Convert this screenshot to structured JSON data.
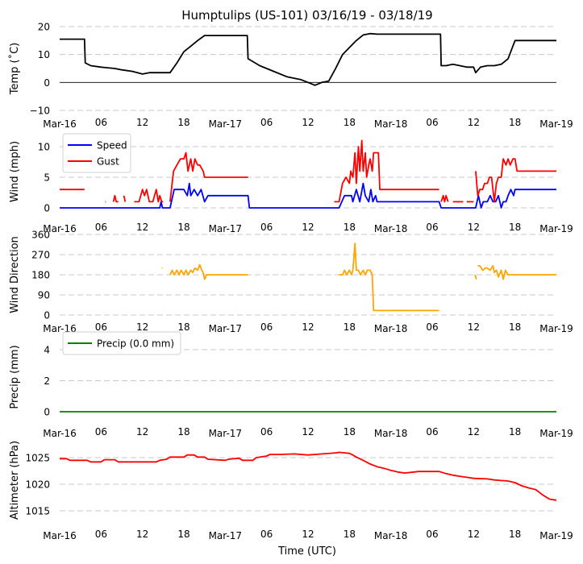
{
  "chart_data": {
    "type": "line",
    "title": "Humptulips (US-101) 03/16/19 - 03/18/19",
    "xlabel": "Time (UTC)",
    "x_unit": "hours since Mar-16 00:00 UTC",
    "xlim": [
      0,
      72
    ],
    "x_ticks": [
      {
        "hour": 0,
        "label": "Mar-16"
      },
      {
        "hour": 6,
        "label": "06"
      },
      {
        "hour": 12,
        "label": "12"
      },
      {
        "hour": 18,
        "label": "18"
      },
      {
        "hour": 24,
        "label": "Mar-17"
      },
      {
        "hour": 30,
        "label": "06"
      },
      {
        "hour": 36,
        "label": "12"
      },
      {
        "hour": 42,
        "label": "18"
      },
      {
        "hour": 48,
        "label": "Mar-18"
      },
      {
        "hour": 54,
        "label": "06"
      },
      {
        "hour": 60,
        "label": "12"
      },
      {
        "hour": 66,
        "label": "18"
      },
      {
        "hour": 72,
        "label": "Mar-19"
      }
    ],
    "panels": [
      {
        "id": "temp",
        "ylabel": "Temp ($^\\circ$C)",
        "ylabel_display": "Temp (˚C)",
        "ylim": [
          -10,
          20
        ],
        "yticks": [
          -10,
          0,
          10,
          20
        ],
        "ytick_labels": [
          "−10",
          "0",
          "10",
          "20"
        ],
        "grid": true,
        "zero_line": true,
        "legend": null,
        "series": [
          {
            "name": "Temp",
            "color": "#000000",
            "x": [
              0,
              3.6,
              3.7,
              4.5,
              6,
              8,
              9,
              10.5,
              12,
              13,
              14,
              15,
              16,
              17,
              18,
              19,
              20,
              21,
              22,
              27.2,
              27.3,
              29,
              31,
              33,
              35,
              36,
              37,
              38,
              39,
              40,
              41,
              42,
              43,
              44,
              45,
              46,
              55.2,
              55.3,
              56,
              57,
              58,
              59,
              60,
              60.3,
              61,
              62,
              63,
              64,
              65,
              66,
              72
            ],
            "y": [
              15.5,
              15.5,
              7,
              6,
              5.5,
              5,
              4.5,
              4,
              3,
              3.5,
              3.5,
              3.5,
              3.5,
              7,
              11,
              13,
              15,
              16.8,
              16.8,
              16.8,
              8.5,
              6,
              4,
              2,
              1,
              0,
              -1,
              0,
              0.5,
              5,
              10,
              12.5,
              15,
              17,
              17.5,
              17.3,
              17.3,
              6,
              6,
              6.5,
              6,
              5.5,
              5.5,
              3.5,
              5.5,
              6,
              6,
              6.5,
              8.5,
              15,
              15
            ]
          }
        ]
      },
      {
        "id": "wind",
        "ylabel": "Wind (mph)",
        "ylim": [
          -0.5,
          12
        ],
        "yticks": [
          0,
          5,
          10
        ],
        "ytick_labels": [
          "0",
          "5",
          "10"
        ],
        "grid": true,
        "legend": {
          "location": "upper-left",
          "entries": [
            "Speed",
            "Gust"
          ]
        },
        "series": [
          {
            "name": "Speed",
            "color": "#0000ff",
            "x": [
              0,
              14.5,
              14.7,
              14.9,
              16,
              16.6,
              17,
              18,
              18.5,
              18.8,
              19,
              19.5,
              20,
              20.5,
              21,
              21.5,
              27.3,
              27.5,
              40.5,
              40.9,
              41.3,
              42.3,
              42.5,
              43,
              43.5,
              44,
              44.3,
              44.8,
              45.1,
              45.4,
              45.8,
              46,
              55,
              55.3,
              60.3,
              60.7,
              61.1,
              61.4,
              62,
              62.4,
              62.8,
              63.2,
              63.6,
              64,
              64.3,
              64.7,
              65,
              65.4,
              65.8,
              66,
              72
            ],
            "y": [
              0,
              0,
              1,
              0,
              0,
              3,
              3,
              3,
              2,
              4,
              2,
              3,
              2,
              3,
              1,
              2,
              2,
              0,
              0,
              1,
              2,
              2,
              1,
              3,
              1,
              4,
              2,
              1,
              3,
              1,
              2,
              1,
              1,
              0,
              0,
              2,
              0,
              1,
              1,
              2,
              1,
              1,
              2,
              0,
              1,
              1,
              2,
              3,
              2,
              3,
              3
            ]
          },
          {
            "name": "Gust",
            "color": "#ff0000",
            "segments": [
              {
                "x": [
                  0,
                  3.6
                ],
                "y": [
                  3,
                  3
                ]
              },
              {
                "x": [
                  6.6,
                  6.7
                ],
                "y": [
                  1,
                  1
                ]
              },
              {
                "x": [
                  7.8,
                  8,
                  8.2,
                  8.5
                ],
                "y": [
                  1,
                  2,
                  1,
                  1
                ]
              },
              {
                "x": [
                  9.3,
                  9.5
                ],
                "y": [
                  2,
                  1
                ]
              },
              {
                "x": [
                  10.8,
                  11.5,
                  12,
                  12.3,
                  12.6,
                  13,
                  13.5,
                  14,
                  14.3,
                  14.5,
                  14.8,
                  15
                ],
                "y": [
                  1,
                  1,
                  3,
                  2,
                  3,
                  1,
                  1,
                  3,
                  1,
                  2,
                  1,
                  1
                ]
              },
              {
                "x": [
                  16,
                  16.5,
                  17,
                  17.5,
                  18,
                  18.3,
                  18.6,
                  19,
                  19.3,
                  19.6,
                  20,
                  20.3,
                  20.8,
                  21,
                  27.3
                ],
                "y": [
                  1,
                  6,
                  7,
                  8,
                  8,
                  9,
                  6,
                  8,
                  6,
                  8,
                  7,
                  7,
                  6,
                  5,
                  5
                ]
              },
              {
                "x": [
                  39.8,
                  40.5,
                  41,
                  41.5,
                  42,
                  42.2,
                  42.5,
                  42.8,
                  43,
                  43.3,
                  43.5,
                  43.8,
                  44,
                  44.3,
                  44.5,
                  44.8,
                  45,
                  45.3,
                  45.5,
                  45.8,
                  46.2,
                  46.4,
                  55
                ],
                "y": [
                  1,
                  1,
                  4,
                  5,
                  4,
                  6,
                  5,
                  9,
                  4,
                  10,
                  6,
                  11,
                  6,
                  9,
                  5,
                  7,
                  8,
                  6,
                  9,
                  9,
                  9,
                  3,
                  3
                ]
              },
              {
                "x": [
                  55.3,
                  55.6,
                  55.8,
                  56,
                  56.3
                ],
                "y": [
                  1,
                  2,
                  1,
                  2,
                  1
                ]
              },
              {
                "x": [
                  57,
                  58.5
                ],
                "y": [
                  1,
                  1
                ]
              },
              {
                "x": [
                  59,
                  60
                ],
                "y": [
                  1,
                  1
                ]
              },
              {
                "x": [
                  60.3,
                  60.6,
                  60.9,
                  61.3,
                  61.6,
                  62,
                  62.3,
                  62.6,
                  63,
                  63.3,
                  63.6,
                  64,
                  64.3,
                  64.7,
                  65,
                  65.3,
                  65.7,
                  66,
                  66.3,
                  66.6,
                  72
                ],
                "y": [
                  6,
                  2,
                  3,
                  3,
                  4,
                  4,
                  5,
                  5,
                  1,
                  4,
                  5,
                  5,
                  8,
                  7,
                  8,
                  7,
                  8,
                  8,
                  6,
                  6,
                  6
                ]
              }
            ]
          }
        ]
      },
      {
        "id": "wdir",
        "ylabel": "Wind Direction",
        "ylim": [
          0,
          360
        ],
        "yticks": [
          0,
          90,
          180,
          270,
          360
        ],
        "ytick_labels": [
          "0",
          "90",
          "180",
          "270",
          "360"
        ],
        "grid": true,
        "legend": null,
        "series": [
          {
            "name": "Wind Direction",
            "color": "#ffa500",
            "segments": [
              {
                "x": [
                  14.8,
                  14.9
                ],
                "y": [
                  210,
                  210
                ]
              },
              {
                "x": [
                  16,
                  16.3,
                  16.6,
                  17,
                  17.3,
                  17.6,
                  18,
                  18.3,
                  18.6,
                  19,
                  19.3,
                  19.6,
                  20,
                  20.3,
                  20.6,
                  20.8,
                  21,
                  21.3,
                  27.3
                ],
                "y": [
                  180,
                  200,
                  180,
                  200,
                  180,
                  200,
                  180,
                  200,
                  180,
                  200,
                  190,
                  210,
                  200,
                  225,
                  200,
                  190,
                  160,
                  180,
                  180
                ]
              },
              {
                "x": [
                  40.5,
                  41,
                  41.3,
                  41.6,
                  42,
                  42.3,
                  42.5,
                  42.8,
                  43,
                  43.3,
                  43.6,
                  44,
                  44.3,
                  44.6,
                  45,
                  45.3,
                  45.5,
                  45.7,
                  55
                ],
                "y": [
                  180,
                  180,
                  200,
                  180,
                  200,
                  180,
                  200,
                  320,
                  200,
                  200,
                  180,
                  200,
                  180,
                  200,
                  200,
                  180,
                  20,
                  20,
                  20
                ]
              },
              {
                "x": [
                  60.2,
                  60.4
                ],
                "y": [
                  180,
                  160
                ]
              },
              {
                "x": [
                  60.6,
                  60.9,
                  61.3,
                  61.7,
                  62,
                  62.4,
                  62.8,
                  63,
                  63.3,
                  63.6,
                  64,
                  64.3,
                  64.6,
                  65,
                  65.3,
                  72
                ],
                "y": [
                  220,
                  220,
                  200,
                  210,
                  210,
                  200,
                  220,
                  190,
                  200,
                  170,
                  200,
                  160,
                  200,
                  180,
                  180,
                  180
                ]
              }
            ]
          }
        ]
      },
      {
        "id": "precip",
        "ylabel": "Precip (mm)",
        "ylim": [
          -0.3,
          5
        ],
        "yticks": [
          0,
          2,
          4
        ],
        "ytick_labels": [
          "0",
          "2",
          "4"
        ],
        "grid": true,
        "legend": {
          "location": "upper-left",
          "entries": [
            "Precip (0.0 mm)"
          ]
        },
        "series": [
          {
            "name": "Precip (0.0 mm)",
            "color": "#008000",
            "x": [
              0,
              72
            ],
            "y": [
              0,
              0
            ]
          }
        ]
      },
      {
        "id": "altimeter",
        "ylabel": "Altimeter (hPa)",
        "ylim": [
          1012,
          1029
        ],
        "yticks": [
          1015,
          1020,
          1025
        ],
        "ytick_labels": [
          "1015",
          "1020",
          "1025"
        ],
        "grid": true,
        "legend": null,
        "series": [
          {
            "name": "Altimeter",
            "color": "#ff0000",
            "x": [
              0,
              1,
              1.5,
              4,
              4.5,
              6,
              6.5,
              8,
              8.5,
              14,
              14.5,
              15.5,
              16,
              18,
              18.5,
              19.5,
              20,
              21,
              21.5,
              24,
              24.5,
              26,
              26.5,
              28,
              28.5,
              30,
              30.5,
              32,
              34,
              36,
              38,
              40,
              40.5,
              42,
              42.5,
              43,
              44,
              45,
              46,
              47,
              48,
              49,
              50,
              52,
              54,
              55,
              56,
              57,
              58,
              59,
              60,
              62,
              63,
              64,
              65,
              66,
              67,
              68,
              69,
              70,
              71,
              72
            ],
            "y": [
              1024.8,
              1024.8,
              1024.5,
              1024.5,
              1024.2,
              1024.2,
              1024.6,
              1024.6,
              1024.2,
              1024.2,
              1024.5,
              1024.7,
              1025.1,
              1025.1,
              1025.5,
              1025.5,
              1025.1,
              1025.1,
              1024.7,
              1024.5,
              1024.7,
              1024.9,
              1024.5,
              1024.5,
              1025,
              1025.3,
              1025.6,
              1025.6,
              1025.7,
              1025.5,
              1025.7,
              1025.9,
              1026,
              1025.8,
              1025.5,
              1025.1,
              1024.5,
              1023.8,
              1023.3,
              1023,
              1022.6,
              1022.3,
              1022.1,
              1022.4,
              1022.4,
              1022.4,
              1022,
              1021.7,
              1021.5,
              1021.3,
              1021.1,
              1021,
              1020.8,
              1020.7,
              1020.6,
              1020.3,
              1019.7,
              1019.3,
              1019,
              1018,
              1017.2,
              1017
            ]
          }
        ]
      }
    ]
  }
}
